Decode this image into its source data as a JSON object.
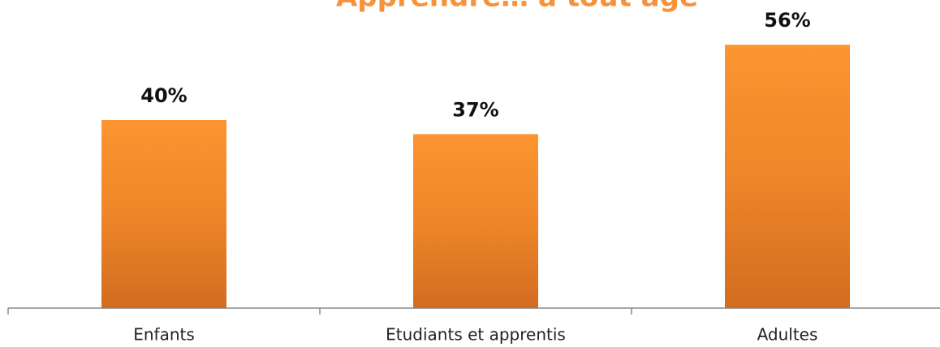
{
  "chart_data": {
    "type": "bar",
    "title": "Apprendre… à tout âge",
    "categories": [
      "Enfants",
      "Etudiants et apprentis",
      "Adultes"
    ],
    "values": [
      40,
      37,
      56
    ],
    "value_labels": [
      "40%",
      "37%",
      "56%"
    ],
    "color": "#f58b2a"
  }
}
